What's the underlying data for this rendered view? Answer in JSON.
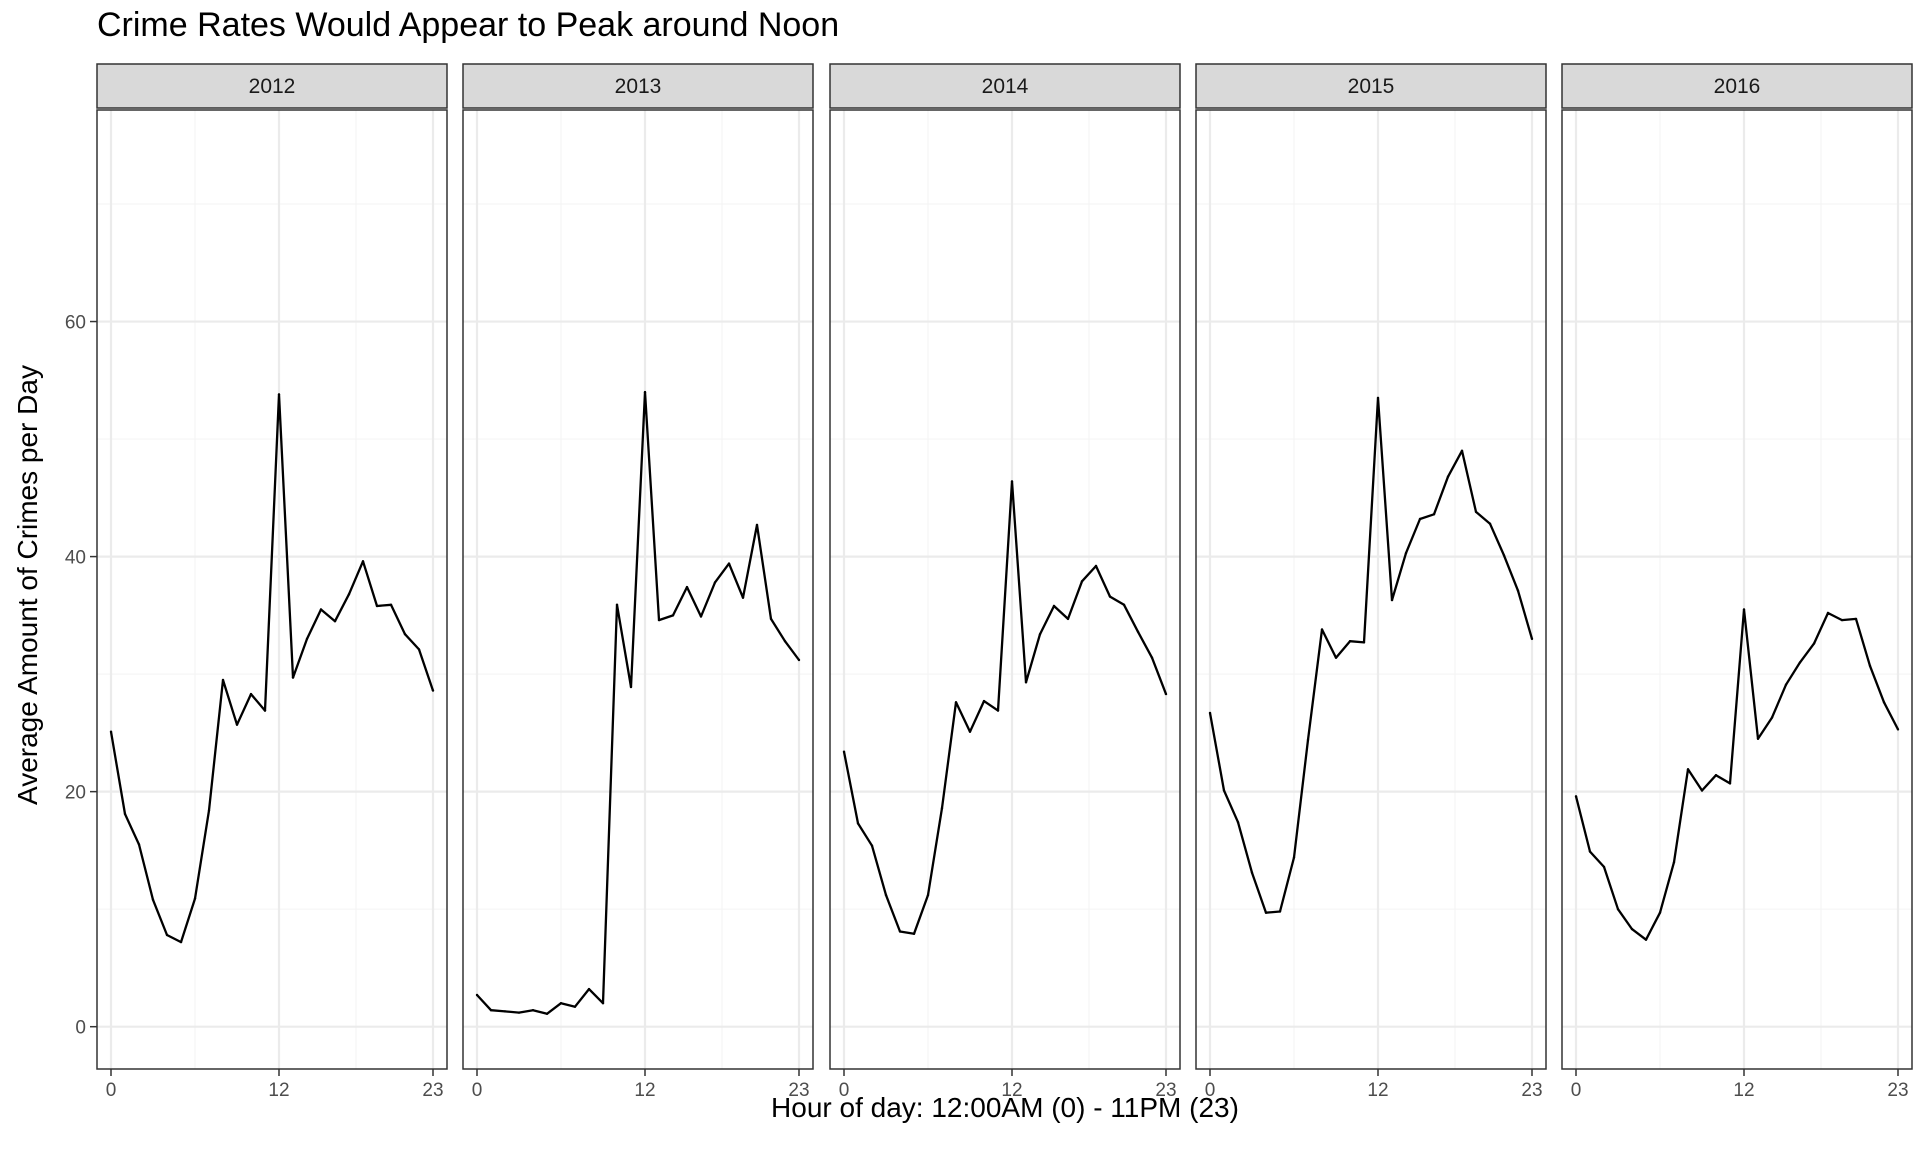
{
  "chart_data": {
    "type": "line",
    "title": "Crime Rates Would Appear to Peak around Noon",
    "xlabel": "Hour of day: 12:00AM (0) - 11PM (23)",
    "ylabel": "Average Amount of Crimes per Day",
    "x": [
      0,
      1,
      2,
      3,
      4,
      5,
      6,
      7,
      8,
      9,
      10,
      11,
      12,
      13,
      14,
      15,
      16,
      17,
      18,
      19,
      20,
      21,
      22,
      23
    ],
    "x_ticks": [
      "0",
      "12",
      "23"
    ],
    "xlim": [
      -1,
      24
    ],
    "y_ticks": [
      "0",
      "20",
      "40",
      "60"
    ],
    "ylim": [
      -3.6,
      78
    ],
    "grid": true,
    "facets": [
      {
        "label": "2012",
        "values": [
          25.1,
          18.1,
          15.5,
          10.8,
          7.8,
          7.2,
          10.9,
          18.4,
          29.5,
          25.7,
          28.3,
          26.9,
          53.8,
          29.7,
          33.0,
          35.5,
          34.5,
          36.8,
          39.6,
          35.8,
          35.9,
          33.4,
          32.1,
          28.6
        ]
      },
      {
        "label": "2013",
        "values": [
          2.7,
          1.4,
          1.3,
          1.2,
          1.4,
          1.1,
          2.0,
          1.7,
          3.2,
          2.0,
          35.9,
          28.9,
          54.0,
          34.6,
          35.0,
          37.4,
          34.9,
          37.8,
          39.4,
          36.5,
          42.7,
          34.7,
          32.8,
          31.2
        ]
      },
      {
        "label": "2014",
        "values": [
          23.4,
          17.3,
          15.4,
          11.2,
          8.1,
          7.9,
          11.2,
          18.6,
          27.6,
          25.1,
          27.7,
          26.9,
          46.4,
          29.3,
          33.4,
          35.8,
          34.7,
          37.9,
          39.2,
          36.6,
          35.9,
          33.6,
          31.4,
          28.3
        ]
      },
      {
        "label": "2015",
        "values": [
          26.7,
          20.1,
          17.4,
          13.1,
          9.7,
          9.8,
          14.4,
          24.4,
          33.8,
          31.4,
          32.8,
          32.7,
          53.5,
          36.3,
          40.3,
          43.2,
          43.6,
          46.8,
          49.0,
          43.8,
          42.8,
          40.1,
          37.1,
          33.0
        ]
      },
      {
        "label": "2016",
        "values": [
          19.6,
          14.9,
          13.6,
          10.0,
          8.3,
          7.4,
          9.7,
          14.0,
          21.9,
          20.1,
          21.4,
          20.7,
          35.5,
          24.5,
          26.3,
          29.1,
          31.0,
          32.6,
          35.2,
          34.6,
          34.7,
          30.7,
          27.6,
          25.3
        ]
      }
    ]
  },
  "colors": {
    "line": "#000000",
    "panel_border": "#333333",
    "strip_fill": "#d9d9d9",
    "grid_major": "#ebebeb",
    "grid_minor": "#f5f5f5",
    "tick_text": "#4d4d4d"
  }
}
